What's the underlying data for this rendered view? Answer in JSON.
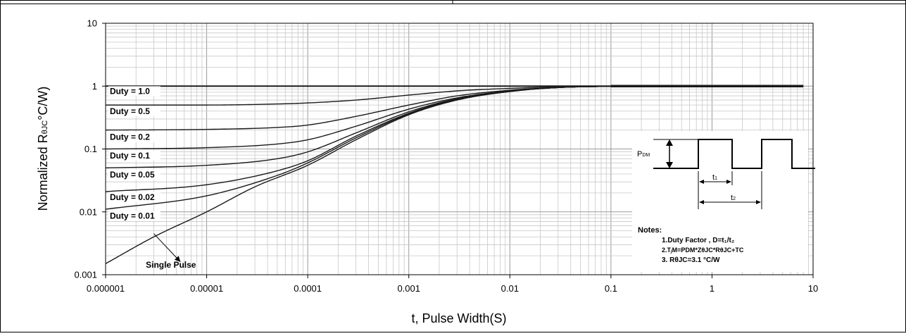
{
  "chart_data": {
    "type": "line",
    "title": "",
    "xlabel": "t, Pulse Width(S)",
    "ylabel": "Normalized RθJC°C/W)",
    "ylabel_parts": {
      "pre": "Normalized R",
      "sub": "θJC",
      "post": "°C/W)"
    },
    "xscale": "log",
    "yscale": "log",
    "xlim": [
      1e-06,
      10
    ],
    "ylim": [
      0.001,
      10
    ],
    "grid": true,
    "x_ticks": [
      "0.000001",
      "0.00001",
      "0.0001",
      "0.001",
      "0.01",
      "0.1",
      "1",
      "10"
    ],
    "y_ticks": [
      "0.001",
      "0.01",
      "0.1",
      "1",
      "10"
    ],
    "series": [
      {
        "name": "Duty = 1.0",
        "x": [
          1e-06,
          1e-05,
          0.0001,
          0.001,
          0.01,
          0.1,
          1,
          8
        ],
        "y": [
          1,
          1,
          1,
          1,
          1,
          1,
          1,
          1
        ]
      },
      {
        "name": "Duty = 0.5",
        "x": [
          1e-06,
          1e-05,
          5e-05,
          0.0001,
          0.0003,
          0.001,
          0.003,
          0.01,
          0.03,
          0.1,
          1,
          8
        ],
        "y": [
          0.5,
          0.5,
          0.52,
          0.54,
          0.6,
          0.72,
          0.84,
          0.92,
          0.97,
          0.99,
          1,
          1
        ]
      },
      {
        "name": "Duty = 0.2",
        "x": [
          1e-06,
          1e-05,
          5e-05,
          0.0001,
          0.0003,
          0.001,
          0.003,
          0.01,
          0.03,
          0.1,
          1,
          8
        ],
        "y": [
          0.2,
          0.205,
          0.22,
          0.24,
          0.33,
          0.5,
          0.7,
          0.86,
          0.95,
          0.99,
          1,
          1
        ]
      },
      {
        "name": "Duty = 0.1",
        "x": [
          1e-06,
          1e-05,
          5e-05,
          0.0001,
          0.0003,
          0.001,
          0.003,
          0.01,
          0.03,
          0.1,
          1,
          8
        ],
        "y": [
          0.1,
          0.105,
          0.12,
          0.14,
          0.23,
          0.43,
          0.65,
          0.84,
          0.95,
          0.99,
          1,
          1
        ]
      },
      {
        "name": "Duty = 0.05",
        "x": [
          1e-06,
          1e-05,
          5e-05,
          0.0001,
          0.0003,
          0.001,
          0.003,
          0.01,
          0.03,
          0.1,
          1,
          8
        ],
        "y": [
          0.05,
          0.055,
          0.07,
          0.09,
          0.18,
          0.39,
          0.63,
          0.83,
          0.95,
          0.99,
          1,
          1
        ]
      },
      {
        "name": "Duty = 0.02",
        "x": [
          1e-06,
          1e-05,
          5e-05,
          0.0001,
          0.0003,
          0.001,
          0.003,
          0.01,
          0.03,
          0.1,
          1,
          8
        ],
        "y": [
          0.021,
          0.027,
          0.045,
          0.065,
          0.16,
          0.37,
          0.62,
          0.83,
          0.95,
          0.99,
          1,
          1
        ]
      },
      {
        "name": "Duty = 0.01",
        "x": [
          1e-06,
          1e-05,
          5e-05,
          0.0001,
          0.0003,
          0.001,
          0.003,
          0.01,
          0.03,
          0.1,
          1,
          8
        ],
        "y": [
          0.011,
          0.018,
          0.038,
          0.06,
          0.15,
          0.36,
          0.61,
          0.82,
          0.95,
          0.99,
          1,
          1
        ]
      },
      {
        "name": "Single Pulse",
        "x": [
          1e-06,
          3e-06,
          1e-05,
          3e-05,
          0.0001,
          0.0003,
          0.001,
          0.003,
          0.01,
          0.03,
          0.1,
          1,
          8
        ],
        "y": [
          0.0015,
          0.004,
          0.01,
          0.025,
          0.055,
          0.14,
          0.35,
          0.6,
          0.82,
          0.95,
          0.99,
          1,
          1
        ]
      }
    ],
    "series_labels": [
      {
        "text": "Duty = 1.0",
        "x": 1.1e-06,
        "y": 0.75
      },
      {
        "text": "Duty = 0.5",
        "x": 1.1e-06,
        "y": 0.36
      },
      {
        "text": "Duty = 0.2",
        "x": 1.1e-06,
        "y": 0.14
      },
      {
        "text": "Duty = 0.1",
        "x": 1.1e-06,
        "y": 0.071
      },
      {
        "text": "Duty = 0.05",
        "x": 1.1e-06,
        "y": 0.035
      },
      {
        "text": "Duty = 0.02",
        "x": 1.1e-06,
        "y": 0.0155
      },
      {
        "text": "Duty = 0.01",
        "x": 1.1e-06,
        "y": 0.0078
      }
    ],
    "annotation": {
      "text": "Single Pulse",
      "x": 2.5e-06,
      "y": 0.0012,
      "arrow_from": [
        3e-06,
        0.0045
      ],
      "arrow_to": [
        5.5e-06,
        0.0016
      ]
    },
    "inset": {
      "pdm_label": "P",
      "pdm_sub": "DM",
      "t1_label": "t",
      "t1_sub": "1",
      "t2_label": "t",
      "t2_sub": "2",
      "notes_title": "Notes:",
      "note1": "1.Duty Factor , D=t₁/t₂",
      "note2": "2.TⱼM=PDM*ZθJC*RθJC+TC",
      "note3": "3. RθJC=3.1 °C/W"
    }
  }
}
